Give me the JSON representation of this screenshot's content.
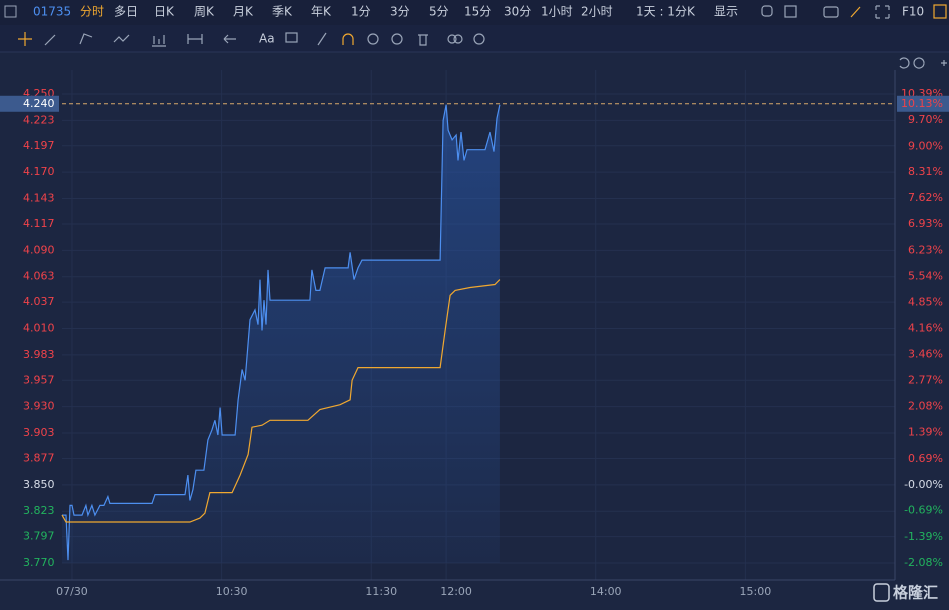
{
  "toolbar": {
    "code": "01735",
    "items": [
      "分时",
      "多日",
      "日K",
      "周K",
      "月K",
      "季K",
      "年K",
      "1分",
      "3分",
      "5分",
      "15分",
      "30分",
      "1小时",
      "2小时",
      "1天 : 1分K",
      "显示",
      "F10"
    ],
    "font_tool": "Aa"
  },
  "watermark": "格隆汇",
  "chart_data": {
    "type": "line",
    "xlim": [
      -4,
      330
    ],
    "xticks": [
      {
        "value": 0,
        "label": "07/30"
      },
      {
        "value": 60,
        "label": "10:30"
      },
      {
        "value": 120,
        "label": "11:30"
      },
      {
        "value": 150,
        "label": "12:00"
      },
      {
        "value": 210,
        "label": "14:00"
      },
      {
        "value": 270,
        "label": "15:00"
      }
    ],
    "ylim": [
      3.77,
      4.25
    ],
    "yticks": [
      {
        "value": 4.25,
        "label": "4.250"
      },
      4.223,
      4.197,
      {
        "value": 4.17,
        "label": "4.170"
      },
      4.143,
      4.117,
      {
        "value": 4.09,
        "label": "4.090"
      },
      4.063,
      4.037,
      {
        "value": 4.01,
        "label": "4.010"
      },
      3.983,
      3.957,
      {
        "value": 3.93,
        "label": "3.930"
      },
      3.903,
      3.877,
      {
        "value": 3.85,
        "label": "3.850"
      },
      3.823,
      3.797,
      {
        "value": 3.77,
        "label": "3.770"
      }
    ],
    "y2lim": [
      -2.08,
      10.39
    ],
    "y2ticks": [
      {
        "value": 10.39,
        "label": "10.39%"
      },
      {
        "value": 9.7,
        "label": "9.70%"
      },
      {
        "value": 9.0,
        "label": "9.00%"
      },
      {
        "value": 8.31,
        "label": "8.31%"
      },
      {
        "value": 7.62,
        "label": "7.62%"
      },
      {
        "value": 6.93,
        "label": "6.93%"
      },
      {
        "value": 6.23,
        "label": "6.23%"
      },
      {
        "value": 5.54,
        "label": "5.54%"
      },
      {
        "value": 4.85,
        "label": "4.85%"
      },
      {
        "value": 4.16,
        "label": "4.16%"
      },
      {
        "value": 3.46,
        "label": "3.46%"
      },
      {
        "value": 2.77,
        "label": "2.77%"
      },
      {
        "value": 2.08,
        "label": "2.08%"
      },
      {
        "value": 1.39,
        "label": "1.39%"
      },
      {
        "value": 0.69,
        "label": "0.69%"
      },
      {
        "value": 0,
        "label": "-0.00%"
      },
      {
        "value": -0.69,
        "label": "-0.69%"
      },
      {
        "value": -1.39,
        "label": "-1.39%"
      },
      {
        "value": -2.08,
        "label": "-2.08%"
      }
    ],
    "base_price": 3.85,
    "current_price": {
      "value": 4.24,
      "label": "4.240"
    },
    "current_pct": {
      "value": 10.13,
      "label": "10.13%"
    },
    "grid": true,
    "up_color": "#f0434a",
    "down_color": "#22b35e",
    "series": [
      {
        "color": "#4d8ff0",
        "x": [
          -4,
          -2.4,
          -1.6,
          -0.8,
          0,
          0.8,
          4,
          5.6,
          6.4,
          8,
          9.2,
          11.2,
          12.8,
          14.4,
          15.2,
          32.1,
          33.3,
          45.3,
          46.5,
          47.3,
          48.5,
          49.7,
          52.9,
          54.5,
          56.1,
          57.3,
          58.5,
          59.4,
          60.2,
          65.4,
          66.6,
          68.2,
          69.4,
          71.4,
          73.4,
          74.6,
          75.4,
          76.2,
          77,
          77.8,
          78.6,
          79.4,
          95.4,
          96.2,
          97.8,
          99.4,
          101.5,
          110.7,
          111.5,
          113.1,
          114.7,
          116.3,
          147.6,
          148.8,
          150,
          150.8,
          152.4,
          154,
          154.8,
          156,
          157.2,
          158.4,
          165.6,
          167.6,
          169.2,
          170.4,
          171.6
        ],
        "values": [
          3.819,
          3.819,
          3.773,
          3.829,
          3.829,
          3.819,
          3.819,
          3.829,
          3.819,
          3.829,
          3.819,
          3.829,
          3.829,
          3.838,
          3.831,
          3.831,
          3.84,
          3.84,
          3.86,
          3.834,
          3.845,
          3.865,
          3.865,
          3.896,
          3.906,
          3.916,
          3.901,
          3.929,
          3.901,
          3.901,
          3.937,
          3.968,
          3.957,
          4.019,
          4.029,
          4.014,
          4.06,
          4.008,
          4.039,
          4.014,
          4.07,
          4.039,
          4.039,
          4.07,
          4.049,
          4.049,
          4.072,
          4.072,
          4.088,
          4.06,
          4.072,
          4.08,
          4.08,
          4.223,
          4.239,
          4.213,
          4.203,
          4.208,
          4.182,
          4.211,
          4.182,
          4.193,
          4.193,
          4.211,
          4.191,
          4.225,
          4.239
        ]
      },
      {
        "color": "#f0a830",
        "x": [
          -4,
          -2.4,
          47.3,
          51.3,
          53.3,
          55.3,
          64.2,
          67.4,
          70.6,
          72.2,
          76.2,
          79.4,
          94.6,
          99.4,
          107.5,
          111.5,
          112.3,
          114.7,
          147.6,
          149.6,
          151.6,
          153.6,
          159.6,
          169.6,
          171.6
        ],
        "values": [
          3.819,
          3.812,
          3.812,
          3.816,
          3.821,
          3.842,
          3.842,
          3.86,
          3.881,
          3.909,
          3.911,
          3.916,
          3.916,
          3.927,
          3.932,
          3.937,
          3.957,
          3.97,
          3.97,
          4.008,
          4.044,
          4.049,
          4.052,
          4.055,
          4.06
        ]
      }
    ]
  }
}
